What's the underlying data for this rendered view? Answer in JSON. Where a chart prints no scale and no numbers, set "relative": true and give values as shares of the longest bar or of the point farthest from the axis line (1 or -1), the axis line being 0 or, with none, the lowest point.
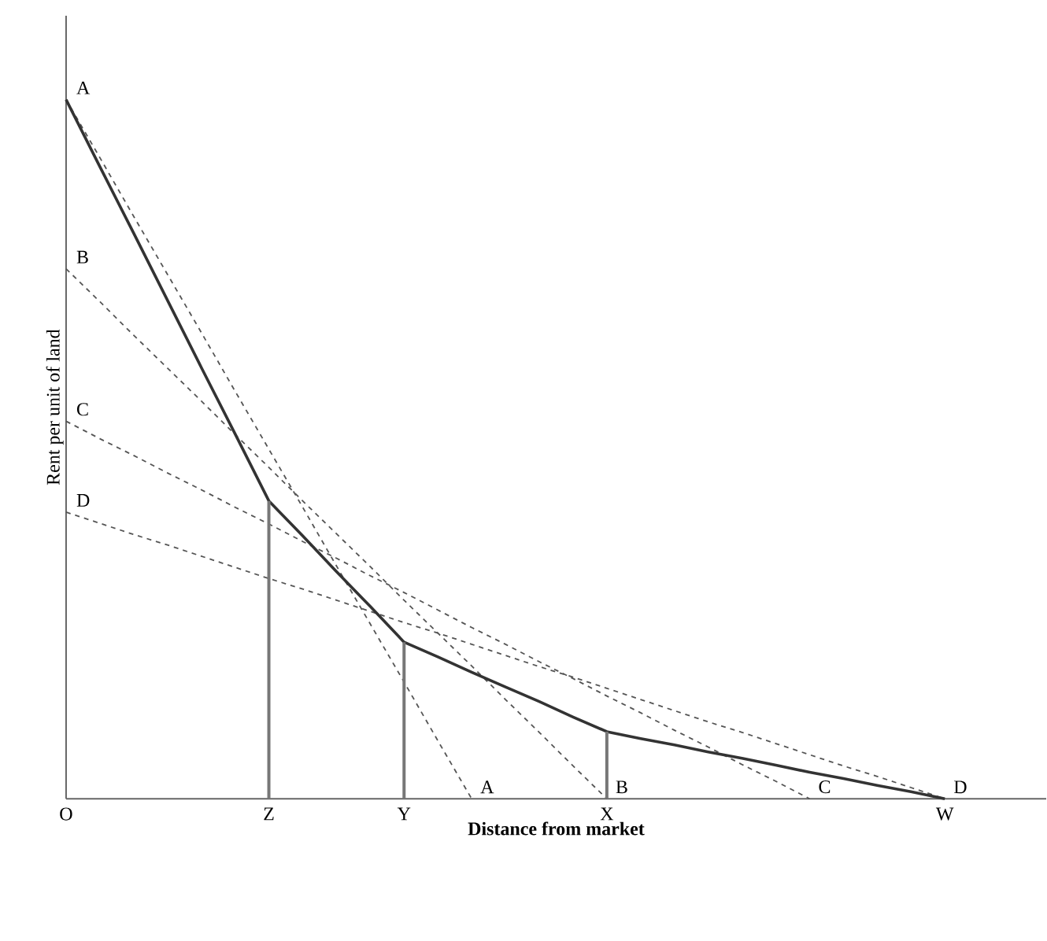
{
  "chart_data": {
    "type": "line",
    "relative": true,
    "xlabel": "Distance from market",
    "ylabel": "Rent per unit of land",
    "categories": [
      "O",
      null,
      null,
      null,
      null,
      null,
      "Z",
      null,
      null,
      null,
      "Y",
      null,
      null,
      null,
      null,
      null,
      "X",
      null,
      null,
      null,
      null,
      null,
      null,
      null,
      null,
      null,
      "W",
      null,
      null,
      null
    ],
    "series": [
      {
        "name": "A",
        "color": "#555555",
        "line_style": "dashed",
        "values": [
          1,
          0.917,
          0.833,
          0.75,
          0.667,
          0.583,
          0.5,
          0.417,
          0.333,
          0.25,
          0.167,
          0.083,
          0,
          null,
          null,
          null,
          null,
          null,
          null,
          null,
          null,
          null,
          null,
          null,
          null,
          null,
          null,
          null,
          null,
          null
        ]
      },
      {
        "name": "B",
        "color": "#555555",
        "line_style": "dashed",
        "values": [
          0.758,
          0.711,
          0.663,
          0.616,
          0.569,
          0.521,
          0.474,
          0.426,
          0.379,
          0.332,
          0.284,
          0.237,
          0.19,
          0.142,
          0.095,
          0.047,
          0,
          null,
          null,
          null,
          null,
          null,
          null,
          null,
          null,
          null,
          null,
          null,
          null,
          null
        ]
      },
      {
        "name": "C",
        "color": "#555555",
        "line_style": "dashed",
        "values": [
          0.54,
          0.515,
          0.491,
          0.466,
          0.442,
          0.417,
          0.393,
          0.368,
          0.344,
          0.319,
          0.295,
          0.27,
          0.245,
          0.221,
          0.196,
          0.172,
          0.147,
          0.123,
          0.098,
          0.074,
          0.049,
          0.025,
          0,
          null,
          null,
          null,
          null,
          null,
          null,
          null
        ]
      },
      {
        "name": "D",
        "color": "#555555",
        "line_style": "dashed",
        "values": [
          0.41,
          0.394,
          0.378,
          0.363,
          0.347,
          0.331,
          0.315,
          0.3,
          0.284,
          0.268,
          0.252,
          0.237,
          0.221,
          0.205,
          0.189,
          0.174,
          0.158,
          0.142,
          0.126,
          0.11,
          0.095,
          0.079,
          0.063,
          0.047,
          0.032,
          0.016,
          0,
          null,
          null,
          null
        ]
      },
      {
        "color": "#333333",
        "line_style": "solid",
        "values": [
          1,
          0.904,
          0.809,
          0.713,
          0.617,
          0.522,
          0.426,
          0.376,
          0.325,
          0.275,
          0.224,
          0.203,
          0.181,
          0.16,
          0.139,
          0.117,
          0.096,
          0.086,
          0.077,
          0.067,
          0.058,
          0.048,
          0.038,
          0.029,
          0.019,
          0.01,
          0,
          null,
          null,
          null
        ]
      },
      {
        "type": "bar",
        "color": "#777777",
        "values": [
          null,
          null,
          null,
          null,
          null,
          null,
          0.426,
          null,
          null,
          null,
          0.224,
          null,
          null,
          null,
          null,
          null,
          0.096,
          null,
          null,
          null,
          null,
          null,
          null,
          null,
          null,
          null,
          null,
          null,
          null,
          null
        ]
      }
    ],
    "grid": false,
    "marker": "none"
  }
}
